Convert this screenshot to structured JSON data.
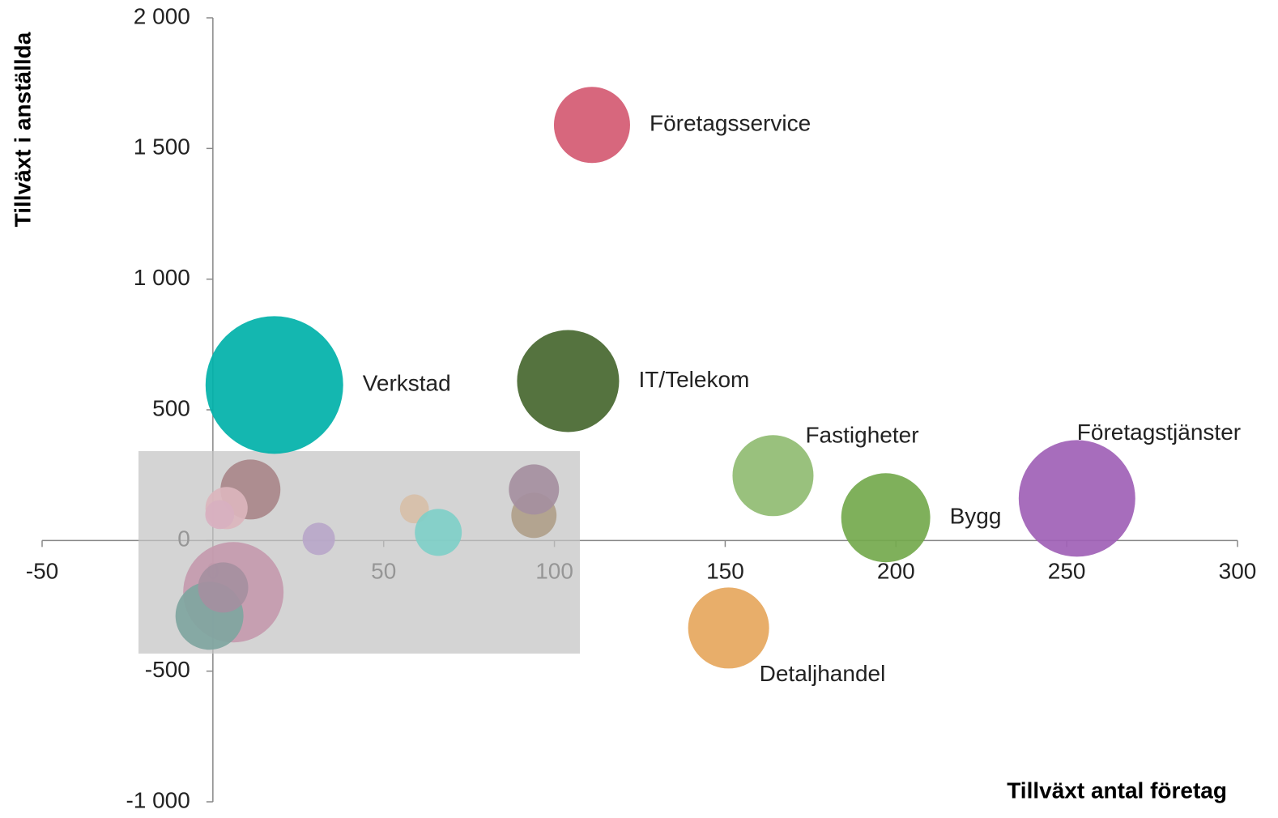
{
  "chart_data": {
    "type": "bubble",
    "xlabel": "Tillväxt antal företag",
    "ylabel": "Tillväxt i anställda",
    "xlim": [
      -50,
      300
    ],
    "xticks": [
      -50,
      0,
      50,
      100,
      150,
      200,
      250,
      300
    ],
    "ylim": [
      -1000,
      2000
    ],
    "yticks": [
      {
        "value": -1000,
        "label": "-1 000"
      },
      -500,
      0,
      500,
      {
        "value": 1000,
        "label": "1 000"
      },
      {
        "value": 1500,
        "label": "1 500"
      },
      {
        "value": 2000,
        "label": "2 000"
      }
    ],
    "series": [
      {
        "color": "#c49aae",
        "x": [
          6
        ],
        "y": [
          -198
        ],
        "size": [
          384
        ]
      },
      {
        "color": "#7fa5a0",
        "x": [
          -1
        ],
        "y": [
          -288
        ],
        "size": [
          176
        ]
      },
      {
        "color": "#a58f9f",
        "x": [
          3
        ],
        "y": [
          -180
        ],
        "size": [
          96
        ]
      },
      {
        "color": "#a9878a",
        "x": [
          11
        ],
        "y": [
          195
        ],
        "size": [
          137
        ]
      },
      {
        "color": "#dbb5bd",
        "x": [
          4
        ],
        "y": [
          124
        ],
        "size": [
          68
        ]
      },
      {
        "color": "#d8b0c0",
        "x": [
          2
        ],
        "y": [
          99
        ],
        "size": [
          32
        ]
      },
      {
        "color": "#b9a7c9",
        "x": [
          31
        ],
        "y": [
          6
        ],
        "size": [
          40
        ]
      },
      {
        "color": "#d7bfa8",
        "x": [
          59
        ],
        "y": [
          121
        ],
        "size": [
          32
        ]
      },
      {
        "color": "#7fcfc8",
        "x": [
          66
        ],
        "y": [
          31
        ],
        "size": [
          84
        ]
      },
      {
        "color": "#b0a08a",
        "x": [
          94
        ],
        "y": [
          96
        ],
        "size": [
          78
        ]
      },
      {
        "color": "#a58f9f",
        "x": [
          94
        ],
        "y": [
          195
        ],
        "size": [
          96
        ]
      },
      {
        "name": "Företagsservice",
        "color": "#d45a72",
        "x": [
          111
        ],
        "y": [
          1590
        ],
        "size": [
          221
        ]
      },
      {
        "name": "Verkstad",
        "color": "#00b1a9",
        "x": [
          18
        ],
        "y": [
          595
        ],
        "size": [
          722
        ]
      },
      {
        "name": "IT/Telekom",
        "color": "#46672f",
        "x": [
          104
        ],
        "y": [
          610
        ],
        "size": [
          397
        ]
      },
      {
        "name": "Fastigheter",
        "color": "#90bc72",
        "x": [
          164
        ],
        "y": [
          248
        ],
        "size": [
          250
        ]
      },
      {
        "name": "Bygg",
        "color": "#74a94d",
        "x": [
          197
        ],
        "y": [
          87
        ],
        "size": [
          302
        ]
      },
      {
        "name": "Företagstjänster",
        "color": "#a061b6",
        "x": [
          253
        ],
        "y": [
          161
        ],
        "size": [
          518
        ]
      },
      {
        "name": "Detaljhandel",
        "color": "#e6a75d",
        "x": [
          151
        ],
        "y": [
          -335
        ],
        "size": [
          250
        ]
      }
    ]
  }
}
